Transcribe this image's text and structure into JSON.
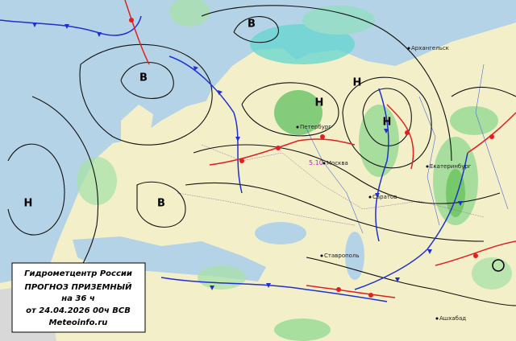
{
  "info_box": {
    "lines": [
      "Гидрометцентр России",
      "ПРОГНОЗ ПРИЗЕМНЫЙ",
      "на 36 ч",
      "от 24.04.2026 00ч ВСВ",
      "Meteoinfo.ru"
    ]
  },
  "pressure_centers": [
    "В",
    "В",
    "В",
    "Н",
    "Н",
    "Н",
    "Н"
  ],
  "cities": [
    "Москва",
    "Петербург",
    "Саратов",
    "Екатеринбург",
    "Ашхабад",
    "Ставрополь",
    "Архангельск"
  ],
  "station_value": "5.10"
}
